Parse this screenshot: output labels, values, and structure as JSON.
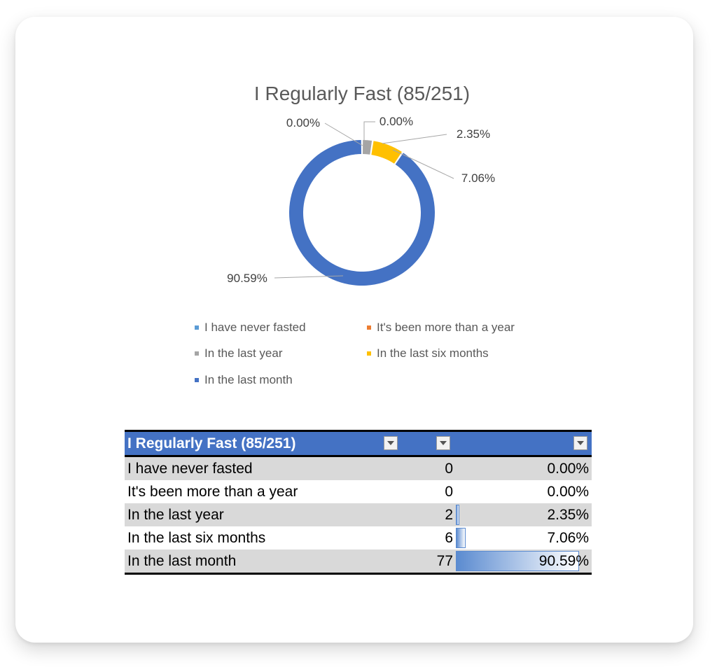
{
  "chart_data": {
    "type": "pie",
    "subtype": "donut",
    "title": "I Regularly Fast (85/251)",
    "categories": [
      "I have never fasted",
      "It's been more than a year",
      "In the last year",
      "In the last six months",
      "In the last month"
    ],
    "values": [
      0,
      0,
      2,
      6,
      77
    ],
    "labels": [
      "0.00%",
      "0.00%",
      "2.35%",
      "7.06%",
      "90.59%"
    ],
    "colors": [
      "#5b9bd5",
      "#ed7d31",
      "#a5a5a5",
      "#ffc000",
      "#4472c4"
    ],
    "legend_position": "bottom"
  },
  "table": {
    "header": "I Regularly Fast (85/251)",
    "rows": [
      {
        "label": "I have never fasted",
        "count": "0",
        "percent": "0.00%",
        "fraction": 0.0
      },
      {
        "label": "It's been more than a year",
        "count": "0",
        "percent": "0.00%",
        "fraction": 0.0
      },
      {
        "label": "In the last year",
        "count": "2",
        "percent": "2.35%",
        "fraction": 0.0235
      },
      {
        "label": "In the last six months",
        "count": "6",
        "percent": "7.06%",
        "fraction": 0.0706
      },
      {
        "label": "In the last month",
        "count": "77",
        "percent": "90.59%",
        "fraction": 0.9059
      }
    ]
  }
}
